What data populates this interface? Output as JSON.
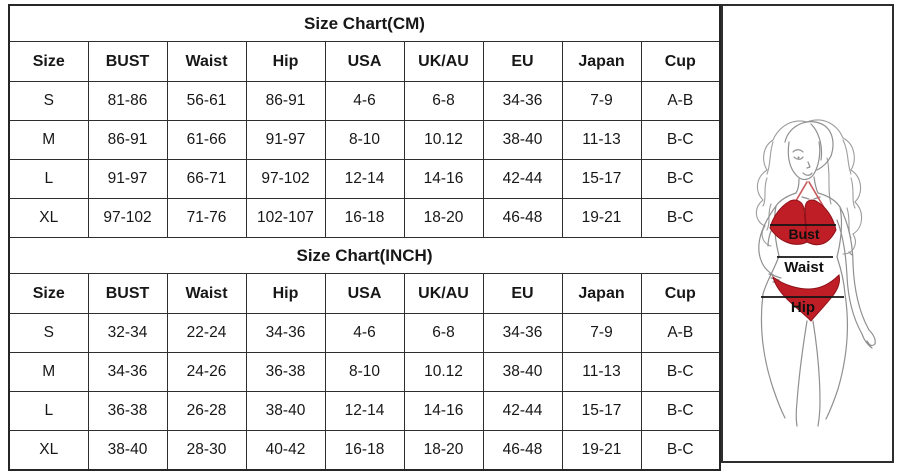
{
  "columns": [
    "Size",
    "BUST",
    "Waist",
    "Hip",
    "USA",
    "UK/AU",
    "EU",
    "Japan",
    "Cup"
  ],
  "tables": [
    {
      "title": "Size Chart(CM)",
      "rows": [
        [
          "S",
          "81-86",
          "56-61",
          "86-91",
          "4-6",
          "6-8",
          "34-36",
          "7-9",
          "A-B"
        ],
        [
          "M",
          "86-91",
          "61-66",
          "91-97",
          "8-10",
          "10.12",
          "38-40",
          "11-13",
          "B-C"
        ],
        [
          "L",
          "91-97",
          "66-71",
          "97-102",
          "12-14",
          "14-16",
          "42-44",
          "15-17",
          "B-C"
        ],
        [
          "XL",
          "97-102",
          "71-76",
          "102-107",
          "16-18",
          "18-20",
          "46-48",
          "19-21",
          "B-C"
        ]
      ]
    },
    {
      "title": "Size Chart(INCH)",
      "rows": [
        [
          "S",
          "32-34",
          "22-24",
          "34-36",
          "4-6",
          "6-8",
          "34-36",
          "7-9",
          "A-B"
        ],
        [
          "M",
          "34-36",
          "24-26",
          "36-38",
          "8-10",
          "10.12",
          "38-40",
          "11-13",
          "B-C"
        ],
        [
          "L",
          "36-38",
          "26-28",
          "38-40",
          "12-14",
          "14-16",
          "42-44",
          "15-17",
          "B-C"
        ],
        [
          "XL",
          "38-40",
          "28-30",
          "40-42",
          "16-18",
          "18-20",
          "46-48",
          "19-21",
          "B-C"
        ]
      ]
    }
  ],
  "figure": {
    "bikini_color": "#c01e26",
    "labels": {
      "bust": "Bust",
      "waist": "Waist",
      "hip": "Hip"
    }
  },
  "colors": {
    "table_border": "#2e2e2e",
    "text": "#171717",
    "background": "#ffffff"
  }
}
